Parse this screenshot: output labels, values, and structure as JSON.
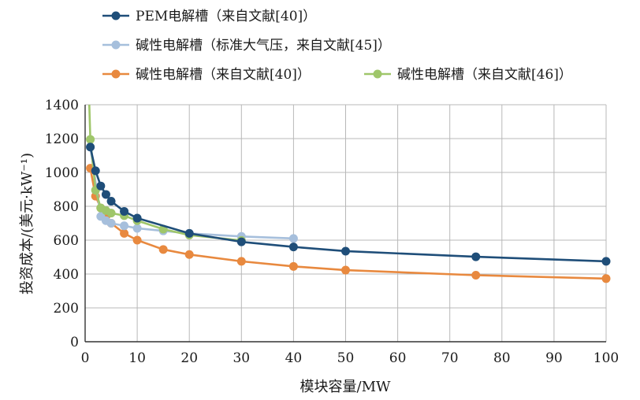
{
  "chart_data": {
    "type": "line",
    "title": "",
    "xlabel": "模块容量/MW",
    "ylabel": "投资成本/(美元·kW⁻¹)",
    "xlim": [
      0,
      100
    ],
    "ylim": [
      0,
      1400
    ],
    "xticks": [
      0,
      10,
      20,
      30,
      40,
      50,
      60,
      70,
      80,
      90,
      100
    ],
    "yticks": [
      0,
      200,
      400,
      600,
      800,
      1000,
      1200,
      1400
    ],
    "grid": true,
    "legend_position": "top",
    "series": [
      {
        "name": "PEM电解槽（来自文献[40]）",
        "color": "#1f4e79",
        "x": [
          1,
          2,
          3,
          4,
          5,
          7.5,
          10,
          20,
          30,
          40,
          50,
          75,
          100
        ],
        "y": [
          1150,
          1010,
          920,
          870,
          830,
          770,
          730,
          640,
          590,
          560,
          535,
          502,
          475
        ]
      },
      {
        "name": "碱性电解槽（标准大气压，来自文献[45]）",
        "color": "#a6bfdc",
        "x": [
          1,
          3,
          4,
          5,
          7.5,
          10,
          15,
          20,
          30,
          40
        ],
        "y": [
          1150,
          740,
          715,
          700,
          685,
          670,
          655,
          640,
          622,
          610
        ]
      },
      {
        "name": "碱性电解槽（来自文献[40]）",
        "color": "#e8893f",
        "x": [
          1,
          2,
          3,
          4,
          5,
          7.5,
          10,
          15,
          20,
          30,
          40,
          50,
          75,
          100
        ],
        "y": [
          1025,
          860,
          790,
          740,
          700,
          640,
          600,
          545,
          515,
          475,
          445,
          423,
          393,
          373
        ]
      },
      {
        "name": "碱性电解槽（来自文献[46]）",
        "color": "#9fc66a",
        "x": [
          1,
          2,
          3,
          4,
          5,
          7.5,
          10,
          15,
          20,
          30
        ],
        "y": [
          1195,
          895,
          790,
          775,
          760,
          745,
          715,
          665,
          630,
          598
        ],
        "start_point": [
          0.8,
          1400
        ]
      }
    ]
  }
}
